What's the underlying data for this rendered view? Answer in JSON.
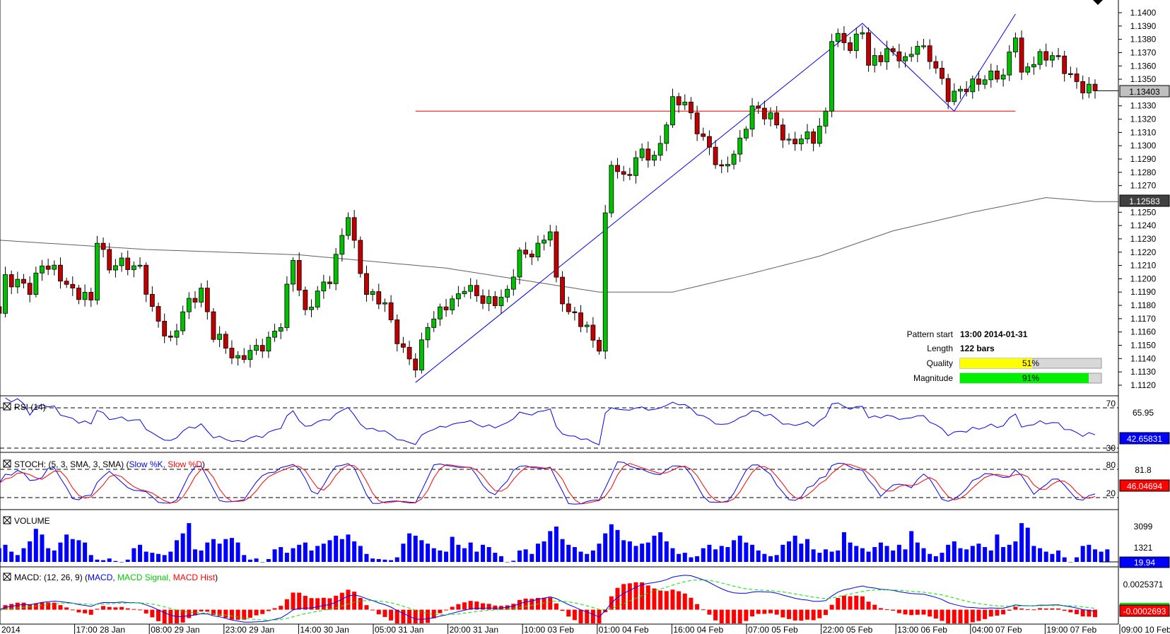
{
  "chart_data": {
    "type": "candlestick",
    "symbol_timeframe": "EUR/USD H1",
    "price_axis": {
      "ticks": [
        "1.1400",
        "1.1390",
        "1.1380",
        "1.1370",
        "1.1360",
        "1.1350",
        "1.1330",
        "1.1320",
        "1.1310",
        "1.1300",
        "1.1290",
        "1.1280",
        "1.1270",
        "1.1250",
        "1.1240",
        "1.1230",
        "1.1220",
        "1.1210",
        "1.1200",
        "1.1190",
        "1.1180",
        "1.1170",
        "1.1160",
        "1.1150",
        "1.1140",
        "1.1130",
        "1.1120"
      ],
      "range": [
        1.1115,
        1.141
      ],
      "last_price": "1.13403",
      "ma_value": "1.12583"
    },
    "price_path": [
      [
        0,
        1.1174
      ],
      [
        1,
        1.1202
      ],
      [
        5,
        1.1191
      ],
      [
        7,
        1.1213
      ],
      [
        11,
        1.1196
      ],
      [
        15,
        1.1182
      ],
      [
        16,
        1.123
      ],
      [
        18,
        1.121
      ],
      [
        23,
        1.121
      ],
      [
        25,
        1.1174
      ],
      [
        28,
        1.1154
      ],
      [
        30,
        1.1174
      ],
      [
        33,
        1.1193
      ],
      [
        35,
        1.1157
      ],
      [
        39,
        1.114
      ],
      [
        42,
        1.1146
      ],
      [
        46,
        1.1165
      ],
      [
        48,
        1.1216
      ],
      [
        50,
        1.1174
      ],
      [
        54,
        1.1202
      ],
      [
        57,
        1.1247
      ],
      [
        58,
        1.1224
      ],
      [
        60,
        1.1191
      ],
      [
        63,
        1.1179
      ],
      [
        66,
        1.1146
      ],
      [
        68,
        1.1132
      ],
      [
        70,
        1.1168
      ],
      [
        74,
        1.1182
      ],
      [
        76,
        1.1196
      ],
      [
        79,
        1.1182
      ],
      [
        83,
        1.1188
      ],
      [
        85,
        1.1219
      ],
      [
        88,
        1.1222
      ],
      [
        90,
        1.1236
      ],
      [
        91,
        1.1199
      ],
      [
        93,
        1.1174
      ],
      [
        96,
        1.1163
      ],
      [
        98,
        1.1149
      ],
      [
        99,
        1.1244
      ],
      [
        100,
        1.1286
      ],
      [
        102,
        1.1277
      ],
      [
        105,
        1.1294
      ],
      [
        107,
        1.1291
      ],
      [
        110,
        1.1331
      ],
      [
        112,
        1.1334
      ],
      [
        115,
        1.1303
      ],
      [
        118,
        1.1283
      ],
      [
        121,
        1.13
      ],
      [
        123,
        1.1331
      ],
      [
        126,
        1.132
      ],
      [
        129,
        1.1303
      ],
      [
        133,
        1.1306
      ],
      [
        135,
        1.1325
      ],
      [
        136,
        1.1381
      ],
      [
        139,
        1.1376
      ],
      [
        141,
        1.1387
      ],
      [
        142,
        1.1359
      ],
      [
        145,
        1.1373
      ],
      [
        148,
        1.1362
      ],
      [
        150,
        1.1379
      ],
      [
        152,
        1.1365
      ],
      [
        155,
        1.1339
      ],
      [
        158,
        1.1342
      ],
      [
        161,
        1.1353
      ],
      [
        164,
        1.1351
      ],
      [
        166,
        1.1387
      ],
      [
        167,
        1.1353
      ],
      [
        170,
        1.1367
      ],
      [
        172,
        1.137
      ],
      [
        174,
        1.1356
      ],
      [
        176,
        1.1348
      ],
      [
        179,
        1.134
      ]
    ],
    "moving_average_path": [
      [
        0,
        1.1229
      ],
      [
        24,
        1.1222
      ],
      [
        49,
        1.1218
      ],
      [
        73,
        1.1208
      ],
      [
        98,
        1.119
      ],
      [
        110,
        1.119
      ],
      [
        122,
        1.1203
      ],
      [
        134,
        1.1217
      ],
      [
        146,
        1.1236
      ],
      [
        159,
        1.125
      ],
      [
        171,
        1.1261
      ],
      [
        179,
        1.1258
      ]
    ],
    "pattern": {
      "resistance_level": 1.1326,
      "resistance_span": [
        68,
        166
      ],
      "zigzag": [
        [
          68,
          1.1122
        ],
        [
          141,
          1.1392
        ],
        [
          156,
          1.1326
        ],
        [
          166,
          1.1399
        ]
      ]
    },
    "time_ticks": [
      "2014",
      "17:00 28 Jan",
      "08:00 29 Jan",
      "23:00 29 Jan",
      "14:00 30 Jan",
      "05:00 31 Jan",
      "20:00 31 Jan",
      "10:00 03 Feb",
      "01:00 04 Feb",
      "16:00 04 Feb",
      "07:00 05 Feb",
      "22:00 05 Feb",
      "13:00 06 Feb",
      "04:00 07 Feb",
      "19:00 07 Feb",
      "09:00 10 Feb"
    ],
    "volume": [
      1200,
      1500,
      900,
      600,
      1200,
      1800,
      2900,
      2400,
      1200,
      1000,
      1700,
      2400,
      2000,
      1900,
      1700,
      600,
      200,
      150,
      300,
      80,
      0,
      200,
      1200,
      1500,
      900,
      800,
      700,
      600,
      900,
      1900,
      2500,
      3400,
      1100,
      1000,
      1700,
      2000,
      1600,
      2000,
      2100,
      1700,
      600,
      200,
      300,
      0,
      250,
      1100,
      1300,
      800,
      1200,
      1500,
      1700,
      1000,
      1400,
      1600,
      1900,
      2300,
      2000,
      2400,
      1800,
      1400,
      700,
      300,
      250,
      200,
      150,
      400,
      1600,
      2500,
      2300,
      1900,
      1600,
      1200,
      1000,
      900,
      2200,
      1500,
      1200,
      1700,
      900,
      1500,
      1300,
      800,
      500,
      0,
      100,
      1000,
      1100,
      700,
      1600,
      1800,
      2700,
      3100,
      2000,
      1500,
      1300,
      900,
      700,
      1000,
      1600,
      2500,
      3300,
      2800,
      1900,
      1800,
      1400,
      1600,
      1700,
      2300,
      2600,
      1800,
      1200,
      700,
      800,
      400,
      500,
      1200,
      1500,
      1100,
      1400,
      1300,
      1900,
      2300,
      1700,
      1500,
      1000,
      700,
      500,
      600,
      1500,
      1800,
      2300,
      1600,
      2000,
      1100,
      800,
      1100,
      900,
      1000,
      2600,
      1700,
      1400,
      1200,
      900,
      1300,
      1700,
      1400,
      1000,
      1500,
      1100,
      2700,
      1700,
      1200,
      700,
      500,
      800,
      1500,
      1800,
      1200,
      1100,
      1400,
      1600,
      1300,
      1000,
      2400,
      1300,
      1500,
      1800,
      3400,
      3000,
      1400,
      1200,
      900,
      700,
      1000,
      400,
      0,
      400,
      1400,
      1500,
      1100,
      900,
      1100
    ],
    "rsi": {
      "label": "RSI (14)",
      "levels": [
        "70",
        "30"
      ],
      "tick": "65.95",
      "value": "42.65831"
    },
    "stoch": {
      "label": "STOCH: (5, 3, SMA, 3, SMA)",
      "k_label": "Slow %K,",
      "d_label": "Slow %D",
      "levels": [
        "80",
        "20"
      ],
      "tick": "81.8",
      "value": "46.04694"
    },
    "volume_panel": {
      "label": "VOLUME",
      "ticks": [
        "3099",
        "1321"
      ],
      "value": "19.94"
    },
    "macd": {
      "label": "MACD: (12, 26, 9)",
      "macd_label": "MACD,",
      "signal_label": "MACD Signal,",
      "hist_label": "MACD Hist",
      "tick": "0.0025371",
      "value": "-0.0002693"
    },
    "colors": {
      "up": "#00c000",
      "down": "#c00000",
      "pattern": "#0000ff",
      "level": "#ff0000",
      "ma": "#606060",
      "macd": "#0000ff",
      "signal": "#00ee00",
      "hist": "#ff0000"
    }
  },
  "info": {
    "pattern_start_label": "Pattern start",
    "pattern_start_value": "13:00 2014-01-31",
    "length_label": "Length",
    "length_value": "122 bars",
    "quality_label": "Quality",
    "quality_value": "51%",
    "quality_pct": 51,
    "magnitude_label": "Magnitude",
    "magnitude_value": "91%",
    "magnitude_pct": 91
  }
}
